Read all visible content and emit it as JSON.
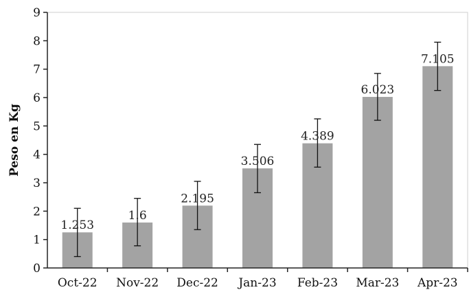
{
  "chart_data": {
    "type": "bar",
    "title": "",
    "xlabel": "",
    "ylabel": "Peso en Kg",
    "ylim": [
      0,
      9
    ],
    "yticks": [
      "0",
      "1",
      "2",
      "3",
      "4",
      "5",
      "6",
      "7",
      "8",
      "9"
    ],
    "grid": false,
    "legend": "none",
    "categories": [
      "Oct-22",
      "Nov-22",
      "Dec-22",
      "Jan-23",
      "Feb-23",
      "Mar-23",
      "Apr-23"
    ],
    "values": [
      1.253,
      1.6,
      2.195,
      3.506,
      4.389,
      6.023,
      7.105
    ],
    "value_labels": [
      "1.253",
      "1.6",
      "2.195",
      "3.506",
      "4.389",
      "6.023",
      "7.105"
    ],
    "error_bars": [
      {
        "low": 0.4,
        "high": 2.1
      },
      {
        "low": 0.78,
        "high": 2.45
      },
      {
        "low": 1.35,
        "high": 3.05
      },
      {
        "low": 2.65,
        "high": 4.35
      },
      {
        "low": 3.55,
        "high": 5.25
      },
      {
        "low": 5.2,
        "high": 6.85
      },
      {
        "low": 6.25,
        "high": 7.95
      }
    ],
    "colors": {
      "bar": "#a3a3a3",
      "error_bar": "#111111",
      "axis": "#222222",
      "frame": "#cfcfcf"
    }
  }
}
